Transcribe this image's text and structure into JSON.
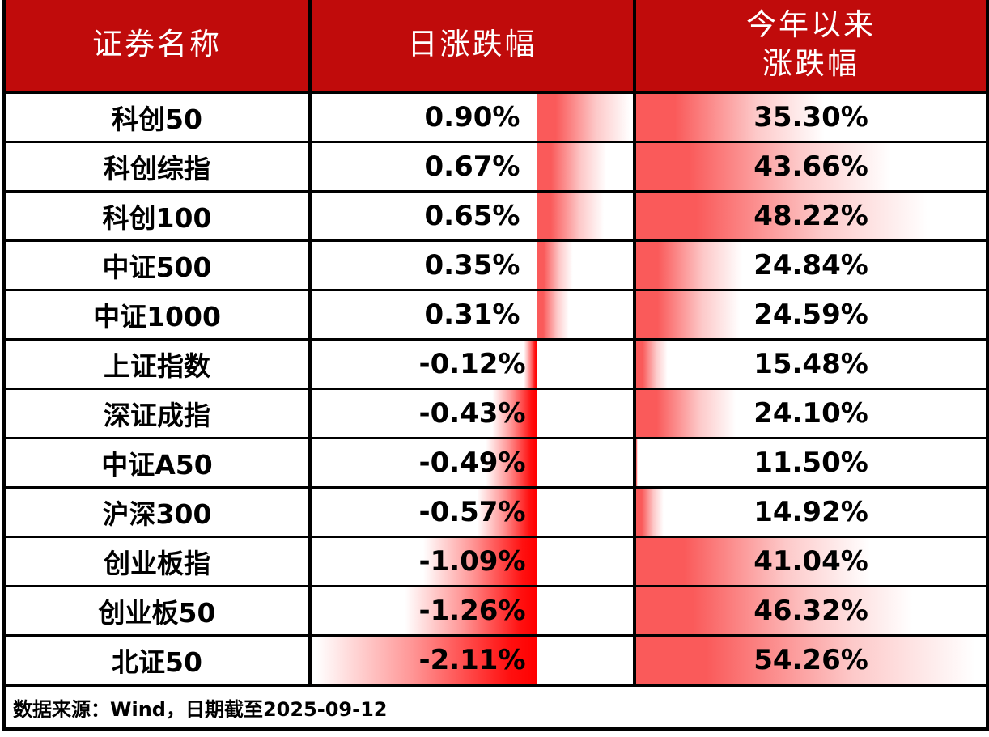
{
  "table": {
    "headers": {
      "name": "证券名称",
      "daily": "日涨跌幅",
      "ytd_line1": "今年以来",
      "ytd_line2": "涨跌幅"
    },
    "chart_data": {
      "type": "table",
      "description": "Index performance table with Excel-style gradient data bars",
      "columns": [
        "证券名称",
        "日涨跌幅",
        "今年以来涨跌幅"
      ],
      "daily_bar_axis": {
        "min": -2.11,
        "max": 0.9
      },
      "ytd_bar_axis": {
        "min": 11.5,
        "max": 54.26
      },
      "rows": [
        {
          "name": "科创50",
          "daily_label": "0.90%",
          "daily_value": 0.9,
          "ytd_label": "35.30%",
          "ytd_value": 35.3
        },
        {
          "name": "科创综指",
          "daily_label": "0.67%",
          "daily_value": 0.67,
          "ytd_label": "43.66%",
          "ytd_value": 43.66
        },
        {
          "name": "科创100",
          "daily_label": "0.65%",
          "daily_value": 0.65,
          "ytd_label": "48.22%",
          "ytd_value": 48.22
        },
        {
          "name": "中证500",
          "daily_label": "0.35%",
          "daily_value": 0.35,
          "ytd_label": "24.84%",
          "ytd_value": 24.84
        },
        {
          "name": "中证1000",
          "daily_label": "0.31%",
          "daily_value": 0.31,
          "ytd_label": "24.59%",
          "ytd_value": 24.59
        },
        {
          "name": "上证指数",
          "daily_label": "-0.12%",
          "daily_value": -0.12,
          "ytd_label": "15.48%",
          "ytd_value": 15.48
        },
        {
          "name": "深证成指",
          "daily_label": "-0.43%",
          "daily_value": -0.43,
          "ytd_label": "24.10%",
          "ytd_value": 24.1
        },
        {
          "name": "中证A50",
          "daily_label": "-0.49%",
          "daily_value": -0.49,
          "ytd_label": "11.50%",
          "ytd_value": 11.5
        },
        {
          "name": "沪深300",
          "daily_label": "-0.57%",
          "daily_value": -0.57,
          "ytd_label": "14.92%",
          "ytd_value": 14.92
        },
        {
          "name": "创业板指",
          "daily_label": "-1.09%",
          "daily_value": -1.09,
          "ytd_label": "41.04%",
          "ytd_value": 41.04
        },
        {
          "name": "创业板50",
          "daily_label": "-1.26%",
          "daily_value": -1.26,
          "ytd_label": "46.32%",
          "ytd_value": 46.32
        },
        {
          "name": "北证50",
          "daily_label": "-2.11%",
          "daily_value": -2.11,
          "ytd_label": "54.26%",
          "ytd_value": 54.26
        }
      ]
    },
    "colors": {
      "header_bg": "#c00b0b",
      "header_text": "#ffffff",
      "positive_bar": "#fa5a5a",
      "negative_bar": "#ff0000",
      "border": "#000000",
      "text": "#000000"
    }
  },
  "footer": {
    "text": "数据来源：Wind，日期截至2025-09-12"
  }
}
